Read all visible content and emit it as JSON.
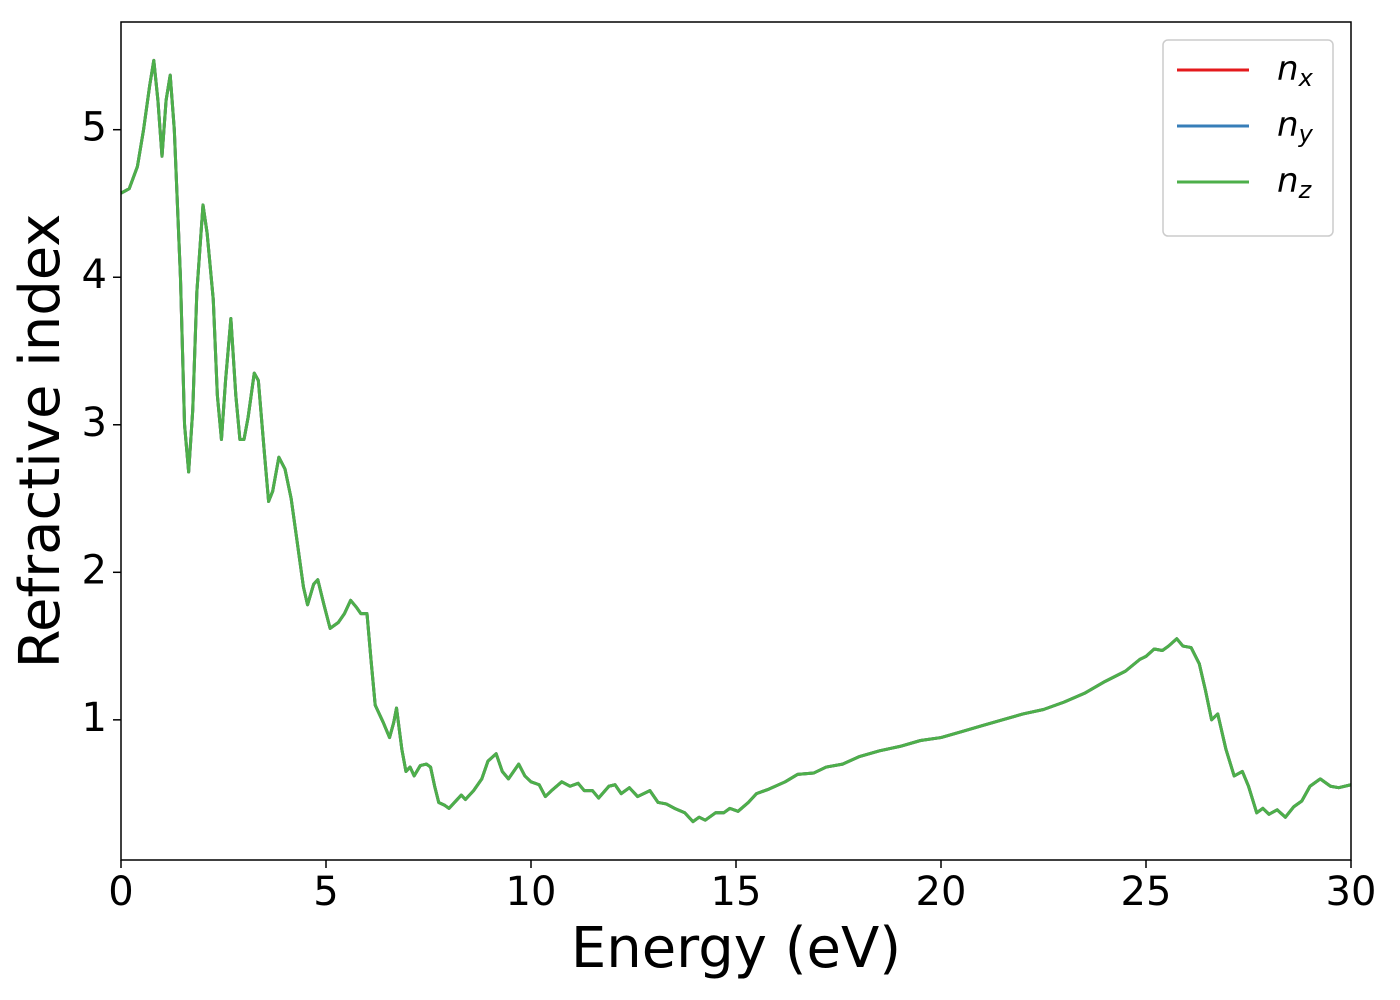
{
  "chart_data": {
    "type": "line",
    "xlabel": "Energy (eV)",
    "ylabel": "Refractive index",
    "xlim": [
      0,
      30
    ],
    "ylim": [
      0.05,
      5.73
    ],
    "xticks": [
      0,
      5,
      10,
      15,
      20,
      25,
      30
    ],
    "yticks": [
      1,
      2,
      3,
      4,
      5
    ],
    "grid": false,
    "legend": "upper right",
    "x": [
      0,
      0.2,
      0.4,
      0.55,
      0.7,
      0.8,
      0.9,
      1.0,
      1.1,
      1.2,
      1.3,
      1.45,
      1.55,
      1.65,
      1.75,
      1.85,
      2.0,
      2.1,
      2.25,
      2.35,
      2.45,
      2.55,
      2.68,
      2.8,
      2.9,
      3.0,
      3.1,
      3.25,
      3.35,
      3.5,
      3.6,
      3.7,
      3.85,
      4.0,
      4.15,
      4.3,
      4.45,
      4.55,
      4.7,
      4.8,
      4.95,
      5.1,
      5.3,
      5.45,
      5.6,
      5.75,
      5.85,
      6.0,
      6.1,
      6.2,
      6.4,
      6.55,
      6.65,
      6.72,
      6.85,
      6.95,
      7.05,
      7.15,
      7.3,
      7.45,
      7.55,
      7.65,
      7.75,
      7.9,
      8.0,
      8.1,
      8.3,
      8.4,
      8.6,
      8.8,
      8.95,
      9.15,
      9.3,
      9.45,
      9.7,
      9.85,
      10.0,
      10.2,
      10.35,
      10.5,
      10.75,
      10.95,
      11.15,
      11.3,
      11.5,
      11.65,
      11.9,
      12.05,
      12.2,
      12.4,
      12.6,
      12.9,
      13.1,
      13.3,
      13.5,
      13.75,
      13.95,
      14.1,
      14.25,
      14.5,
      14.7,
      14.85,
      15.05,
      15.3,
      15.5,
      15.8,
      16.2,
      16.5,
      16.9,
      17.2,
      17.6,
      18.0,
      18.5,
      19.0,
      19.5,
      20.0,
      20.5,
      21.0,
      21.5,
      22.0,
      22.5,
      23.0,
      23.5,
      24.0,
      24.5,
      24.85,
      25.0,
      25.2,
      25.4,
      25.55,
      25.75,
      25.9,
      26.1,
      26.3,
      26.45,
      26.6,
      26.75,
      26.95,
      27.15,
      27.35,
      27.5,
      27.7,
      27.85,
      28.0,
      28.2,
      28.4,
      28.6,
      28.8,
      29.0,
      29.25,
      29.5,
      29.7,
      30.0
    ],
    "series": [
      {
        "name": "nx",
        "color": "#e41a1c",
        "values": [
          4.57,
          4.6,
          4.75,
          5.0,
          5.3,
          5.47,
          5.2,
          4.82,
          5.2,
          5.37,
          5.0,
          4.0,
          3.0,
          2.68,
          3.1,
          3.9,
          4.49,
          4.3,
          3.85,
          3.2,
          2.9,
          3.3,
          3.72,
          3.2,
          2.9,
          2.9,
          3.05,
          3.35,
          3.3,
          2.8,
          2.48,
          2.55,
          2.78,
          2.7,
          2.5,
          2.2,
          1.9,
          1.78,
          1.92,
          1.95,
          1.78,
          1.62,
          1.66,
          1.72,
          1.81,
          1.76,
          1.72,
          1.72,
          1.4,
          1.1,
          0.98,
          0.88,
          0.98,
          1.08,
          0.8,
          0.65,
          0.68,
          0.62,
          0.69,
          0.7,
          0.68,
          0.55,
          0.44,
          0.42,
          0.4,
          0.43,
          0.49,
          0.46,
          0.52,
          0.6,
          0.72,
          0.77,
          0.65,
          0.6,
          0.7,
          0.62,
          0.58,
          0.56,
          0.48,
          0.52,
          0.58,
          0.55,
          0.57,
          0.52,
          0.52,
          0.47,
          0.55,
          0.56,
          0.5,
          0.54,
          0.48,
          0.52,
          0.44,
          0.43,
          0.4,
          0.37,
          0.31,
          0.34,
          0.32,
          0.37,
          0.37,
          0.4,
          0.38,
          0.44,
          0.5,
          0.53,
          0.58,
          0.63,
          0.64,
          0.68,
          0.7,
          0.75,
          0.79,
          0.82,
          0.86,
          0.88,
          0.92,
          0.96,
          1.0,
          1.04,
          1.07,
          1.12,
          1.18,
          1.26,
          1.33,
          1.41,
          1.43,
          1.48,
          1.47,
          1.5,
          1.55,
          1.5,
          1.49,
          1.38,
          1.2,
          1.0,
          1.04,
          0.8,
          0.62,
          0.65,
          0.55,
          0.37,
          0.4,
          0.36,
          0.39,
          0.34,
          0.41,
          0.45,
          0.55,
          0.6,
          0.55,
          0.54,
          0.56
        ]
      },
      {
        "name": "ny",
        "color": "#377eb8",
        "values": [
          4.57,
          4.6,
          4.75,
          5.0,
          5.3,
          5.47,
          5.2,
          4.82,
          5.2,
          5.37,
          5.0,
          4.0,
          3.0,
          2.68,
          3.1,
          3.9,
          4.49,
          4.3,
          3.85,
          3.2,
          2.9,
          3.3,
          3.72,
          3.2,
          2.9,
          2.9,
          3.05,
          3.35,
          3.3,
          2.8,
          2.48,
          2.55,
          2.78,
          2.7,
          2.5,
          2.2,
          1.9,
          1.78,
          1.92,
          1.95,
          1.78,
          1.62,
          1.66,
          1.72,
          1.81,
          1.76,
          1.72,
          1.72,
          1.4,
          1.1,
          0.98,
          0.88,
          0.98,
          1.08,
          0.8,
          0.65,
          0.68,
          0.62,
          0.69,
          0.7,
          0.68,
          0.55,
          0.44,
          0.42,
          0.4,
          0.43,
          0.49,
          0.46,
          0.52,
          0.6,
          0.72,
          0.77,
          0.65,
          0.6,
          0.7,
          0.62,
          0.58,
          0.56,
          0.48,
          0.52,
          0.58,
          0.55,
          0.57,
          0.52,
          0.52,
          0.47,
          0.55,
          0.56,
          0.5,
          0.54,
          0.48,
          0.52,
          0.44,
          0.43,
          0.4,
          0.37,
          0.31,
          0.34,
          0.32,
          0.37,
          0.37,
          0.4,
          0.38,
          0.44,
          0.5,
          0.53,
          0.58,
          0.63,
          0.64,
          0.68,
          0.7,
          0.75,
          0.79,
          0.82,
          0.86,
          0.88,
          0.92,
          0.96,
          1.0,
          1.04,
          1.07,
          1.12,
          1.18,
          1.26,
          1.33,
          1.41,
          1.43,
          1.48,
          1.47,
          1.5,
          1.55,
          1.5,
          1.49,
          1.38,
          1.2,
          1.0,
          1.04,
          0.8,
          0.62,
          0.65,
          0.55,
          0.37,
          0.4,
          0.36,
          0.39,
          0.34,
          0.41,
          0.45,
          0.55,
          0.6,
          0.55,
          0.54,
          0.56
        ]
      },
      {
        "name": "nz",
        "color": "#4daf4a",
        "values": [
          4.57,
          4.6,
          4.75,
          5.0,
          5.3,
          5.47,
          5.2,
          4.82,
          5.2,
          5.37,
          5.0,
          4.0,
          3.0,
          2.68,
          3.1,
          3.9,
          4.49,
          4.3,
          3.85,
          3.2,
          2.9,
          3.3,
          3.72,
          3.2,
          2.9,
          2.9,
          3.05,
          3.35,
          3.3,
          2.8,
          2.48,
          2.55,
          2.78,
          2.7,
          2.5,
          2.2,
          1.9,
          1.78,
          1.92,
          1.95,
          1.78,
          1.62,
          1.66,
          1.72,
          1.81,
          1.76,
          1.72,
          1.72,
          1.4,
          1.1,
          0.98,
          0.88,
          0.98,
          1.08,
          0.8,
          0.65,
          0.68,
          0.62,
          0.69,
          0.7,
          0.68,
          0.55,
          0.44,
          0.42,
          0.4,
          0.43,
          0.49,
          0.46,
          0.52,
          0.6,
          0.72,
          0.77,
          0.65,
          0.6,
          0.7,
          0.62,
          0.58,
          0.56,
          0.48,
          0.52,
          0.58,
          0.55,
          0.57,
          0.52,
          0.52,
          0.47,
          0.55,
          0.56,
          0.5,
          0.54,
          0.48,
          0.52,
          0.44,
          0.43,
          0.4,
          0.37,
          0.31,
          0.34,
          0.32,
          0.37,
          0.37,
          0.4,
          0.38,
          0.44,
          0.5,
          0.53,
          0.58,
          0.63,
          0.64,
          0.68,
          0.7,
          0.75,
          0.79,
          0.82,
          0.86,
          0.88,
          0.92,
          0.96,
          1.0,
          1.04,
          1.07,
          1.12,
          1.18,
          1.26,
          1.33,
          1.41,
          1.43,
          1.48,
          1.47,
          1.5,
          1.55,
          1.5,
          1.49,
          1.38,
          1.2,
          1.0,
          1.04,
          0.8,
          0.62,
          0.65,
          0.55,
          0.37,
          0.4,
          0.36,
          0.39,
          0.34,
          0.41,
          0.45,
          0.55,
          0.6,
          0.55,
          0.54,
          0.56
        ]
      }
    ]
  }
}
